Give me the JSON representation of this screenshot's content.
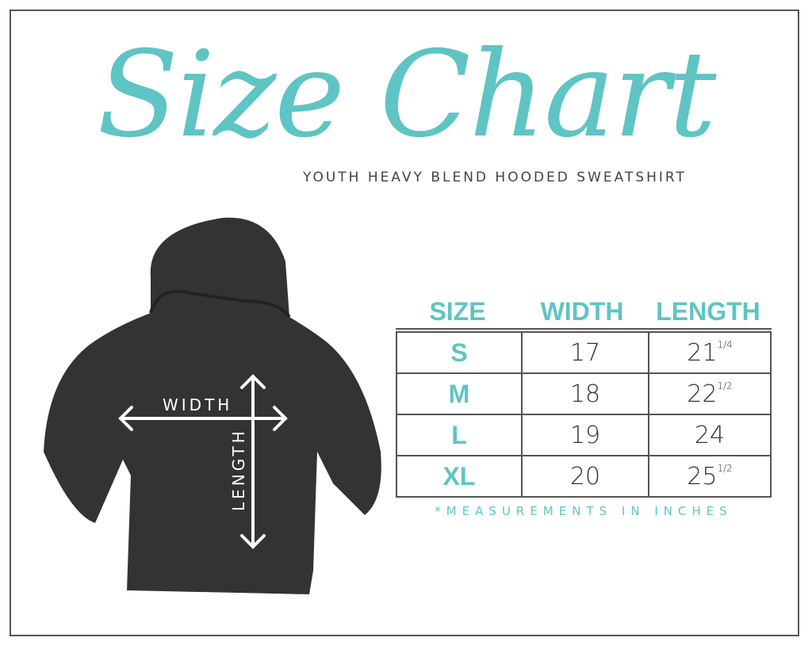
{
  "title": "Size Chart",
  "subtitle": "YOUTH HEAVY BLEND HOODED SWEATSHIRT",
  "diagram": {
    "width_label": "WIDTH",
    "length_label": "LENGTH"
  },
  "table": {
    "headers": [
      "SIZE",
      "WIDTH",
      "LENGTH"
    ],
    "rows": [
      {
        "size": "S",
        "width": "17",
        "length": "21",
        "length_fraction": "1/4"
      },
      {
        "size": "M",
        "width": "18",
        "length": "22",
        "length_fraction": "1/2"
      },
      {
        "size": "L",
        "width": "19",
        "length": "24",
        "length_fraction": ""
      },
      {
        "size": "XL",
        "width": "20",
        "length": "25",
        "length_fraction": "1/2"
      }
    ]
  },
  "note": "*MEASUREMENTS IN INCHES",
  "colors": {
    "accent": "#5fc4c4",
    "text": "#333333",
    "garment": "#333333"
  }
}
